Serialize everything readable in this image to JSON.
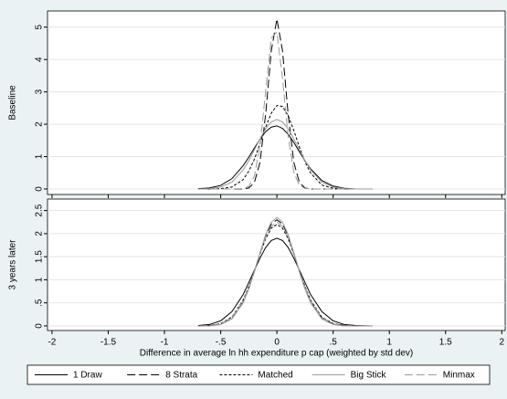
{
  "chart_data": [
    {
      "type": "line",
      "ylabel": "Baseline",
      "x": [
        -0.7,
        -0.6,
        -0.5,
        -0.4,
        -0.3,
        -0.25,
        -0.2,
        -0.15,
        -0.1,
        -0.05,
        0,
        0.05,
        0.1,
        0.15,
        0.2,
        0.25,
        0.3,
        0.4,
        0.5,
        0.6,
        0.7,
        0.85
      ],
      "xlim": [
        -2.04,
        2.03
      ],
      "xticks": [
        -2,
        -1.5,
        -1,
        -0.5,
        0,
        0.5,
        1,
        1.5,
        2
      ],
      "ylim": [
        -0.17,
        5.5
      ],
      "yticks": [
        0,
        1,
        2,
        3,
        4,
        5
      ],
      "grid": true,
      "series": [
        {
          "name": "1 Draw",
          "color": "#000000",
          "dash": "solid",
          "values": [
            0.01,
            0.03,
            0.11,
            0.32,
            0.72,
            0.98,
            1.27,
            1.54,
            1.77,
            1.91,
            1.95,
            1.87,
            1.69,
            1.44,
            1.15,
            0.87,
            0.62,
            0.26,
            0.09,
            0.02,
            0,
            0
          ]
        },
        {
          "name": "8 Strata",
          "color": "#000000",
          "dash": "longdash",
          "values": [
            0,
            0,
            0,
            0,
            0,
            0.03,
            0.2,
            0.83,
            2.31,
            4.27,
            5.25,
            4.27,
            2.31,
            0.83,
            0.2,
            0.03,
            0,
            0,
            0,
            0,
            0,
            0
          ]
        },
        {
          "name": "Matched",
          "color": "#000000",
          "dash": "shortdash",
          "values": [
            0,
            0,
            0.01,
            0.06,
            0.29,
            0.55,
            0.92,
            1.4,
            1.91,
            2.34,
            2.58,
            2.55,
            2.27,
            1.81,
            1.3,
            0.84,
            0.49,
            0.12,
            0.02,
            0,
            0,
            0
          ]
        },
        {
          "name": "Big Stick",
          "color": "#999999",
          "dash": "solid",
          "values": [
            0,
            0.01,
            0.06,
            0.21,
            0.59,
            0.87,
            1.21,
            1.55,
            1.86,
            2.07,
            2.15,
            2.07,
            1.86,
            1.55,
            1.21,
            0.87,
            0.59,
            0.21,
            0.06,
            0.01,
            0,
            0
          ]
        },
        {
          "name": "Minmax",
          "color": "#999999",
          "dash": "longdash",
          "values": [
            0,
            0,
            0,
            0,
            0.01,
            0.08,
            0.4,
            1.34,
            3.03,
            4.66,
            4.85,
            3.41,
            1.62,
            0.52,
            0.11,
            0.02,
            0,
            0,
            0,
            0,
            0,
            0
          ]
        }
      ]
    },
    {
      "type": "line",
      "ylabel": "3 years later",
      "xlabel": "Difference in average ln hh expenditure p cap (weighted by std dev)",
      "x": [
        -0.7,
        -0.6,
        -0.5,
        -0.4,
        -0.3,
        -0.25,
        -0.2,
        -0.15,
        -0.1,
        -0.05,
        0,
        0.05,
        0.1,
        0.15,
        0.2,
        0.25,
        0.3,
        0.4,
        0.5,
        0.6,
        0.7,
        0.85
      ],
      "xlim": [
        -2.04,
        2.03
      ],
      "xticks": [
        -2,
        -1.5,
        -1,
        {
          "value": -0.5,
          "label": "-.5"
        },
        0,
        {
          "value": 0.5,
          "label": ".5"
        },
        1,
        1.5,
        2
      ],
      "ylim": [
        -0.1,
        2.75
      ],
      "yticks": [
        0,
        {
          "value": 0.5,
          "label": ".5"
        },
        1,
        1.5,
        2,
        2.5
      ],
      "grid": true,
      "series": [
        {
          "color": "#000000",
          "dash": "solid",
          "values": [
            0.01,
            0.03,
            0.11,
            0.31,
            0.68,
            0.94,
            1.21,
            1.47,
            1.7,
            1.85,
            1.9,
            1.85,
            1.7,
            1.47,
            1.21,
            0.94,
            0.68,
            0.31,
            0.11,
            0.03,
            0.01,
            0
          ]
        },
        {
          "color": "#000000",
          "dash": "longdash",
          "values": [
            0,
            0.01,
            0.04,
            0.16,
            0.51,
            0.81,
            1.18,
            1.58,
            1.95,
            2.21,
            2.3,
            2.21,
            1.95,
            1.58,
            1.18,
            0.81,
            0.51,
            0.16,
            0.04,
            0.01,
            0,
            0
          ]
        },
        {
          "color": "#000000",
          "dash": "shortdash",
          "values": [
            0,
            0.01,
            0.05,
            0.19,
            0.56,
            0.85,
            1.19,
            1.56,
            1.89,
            2.12,
            2.2,
            2.12,
            1.89,
            1.56,
            1.19,
            0.85,
            0.56,
            0.19,
            0.05,
            0.01,
            0,
            0
          ]
        },
        {
          "color": "#999999",
          "dash": "solid",
          "values": [
            0,
            0,
            0.03,
            0.15,
            0.5,
            0.8,
            1.18,
            1.59,
            1.98,
            2.25,
            2.35,
            2.25,
            1.98,
            1.59,
            1.18,
            0.8,
            0.5,
            0.15,
            0.03,
            0,
            0,
            0
          ]
        },
        {
          "color": "#999999",
          "dash": "longdash",
          "values": [
            0,
            0.01,
            0.04,
            0.18,
            0.54,
            0.83,
            1.19,
            1.57,
            1.92,
            2.16,
            2.25,
            2.16,
            1.92,
            1.57,
            1.19,
            0.83,
            0.54,
            0.18,
            0.04,
            0.01,
            0,
            0
          ]
        }
      ]
    }
  ]
}
